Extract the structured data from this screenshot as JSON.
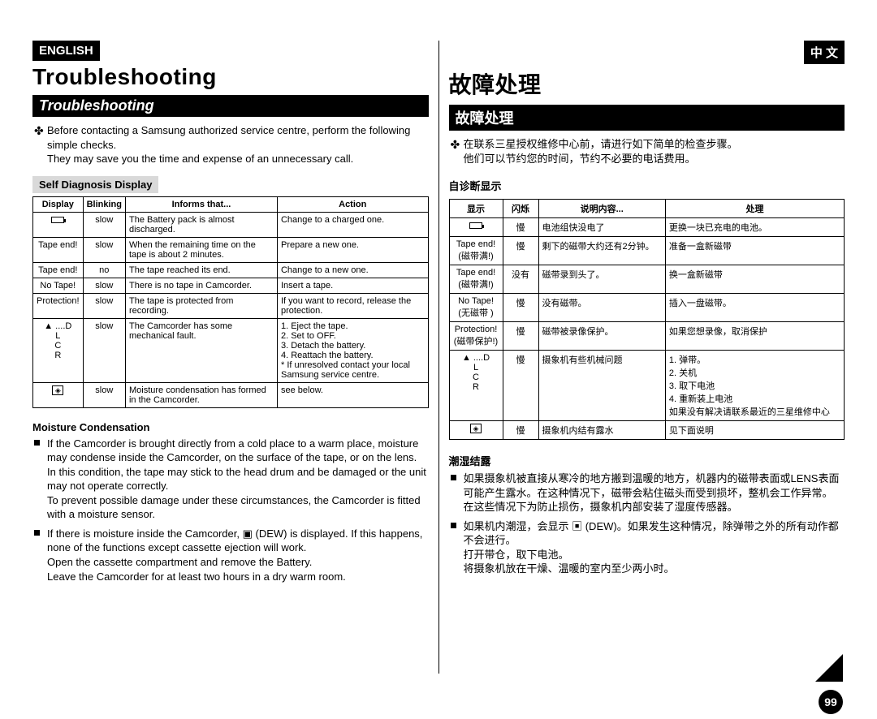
{
  "page_number": "99",
  "colors": {
    "bg": "#ffffff",
    "ink": "#000000",
    "section_bg": "#d9d9d9"
  },
  "left": {
    "lang_tab": "ENGLISH",
    "title": "Troubleshooting",
    "subtitle": "Troubleshooting",
    "intro_line1": "Before contacting a Samsung authorized service centre, perform the following simple checks.",
    "intro_line2": "They may save you the time and expense of an unnecessary call.",
    "section_label": "Self Diagnosis Display",
    "table": {
      "headers": [
        "Display",
        "Blinking",
        "Informs that...",
        "Action"
      ],
      "col_widths": [
        "60px",
        "50px",
        "auto",
        "auto"
      ],
      "rows": [
        {
          "display_icon": "batt",
          "display_text": "",
          "blinking": "slow",
          "informs": "The Battery pack is almost discharged.",
          "action": "Change to a charged one."
        },
        {
          "display_text": "Tape end!",
          "blinking": "slow",
          "informs": "When the remaining time on the tape is about 2 minutes.",
          "action": "Prepare a new one."
        },
        {
          "display_text": "Tape end!",
          "blinking": "no",
          "informs": "The tape reached its end.",
          "action": "Change to a new one."
        },
        {
          "display_text": "No Tape!",
          "blinking": "slow",
          "informs": "There is no tape in Camcorder.",
          "action": "Insert a tape."
        },
        {
          "display_text": "Protection!",
          "blinking": "slow",
          "informs": "The tape is protected from recording.",
          "action": "If you want to record, release the protection."
        },
        {
          "display_icon": "eject",
          "display_text": "▲ ....D\n     L\n     C\n     R",
          "blinking": "slow",
          "informs": "The Camcorder has some mechanical fault.",
          "action": "1. Eject the tape.\n2. Set to OFF.\n3. Detach the battery.\n4. Reattach the battery.\n* If unresolved contact your local Samsung service centre."
        },
        {
          "display_icon": "dew",
          "display_text": "",
          "blinking": "slow",
          "informs": "Moisture condensation has formed in the Camcorder.",
          "action": "see below."
        }
      ]
    },
    "moisture_heading": "Moisture Condensation",
    "moisture_items": [
      "If the Camcorder is brought directly from a cold place to a warm place, moisture may condense inside the Camcorder, on the surface of the tape, or on the lens. In this condition, the tape may stick to the head drum and be damaged or the unit may not operate correctly.\nTo prevent possible damage under these circumstances, the Camcorder is fitted with a moisture sensor.",
      "If there is moisture inside the Camcorder, ▣ (DEW) is displayed. If this happens, none of the functions except cassette ejection will work.\nOpen the cassette compartment and remove the Battery.\nLeave the Camcorder for at least two hours in a dry warm room."
    ]
  },
  "right": {
    "lang_tab": "中 文",
    "title": "故障处理",
    "subtitle": "故障处理",
    "intro_line1": "在联系三星授权维修中心前，请进行如下简单的检查步骤。",
    "intro_line2": "他们可以节约您的时间，节约不必要的电话费用。",
    "section_label": "自诊断显示",
    "table": {
      "headers": [
        "显示",
        "闪烁",
        "说明内容...",
        "处理"
      ],
      "col_widths": [
        "66px",
        "44px",
        "auto",
        "auto"
      ],
      "rows": [
        {
          "display_icon": "batt",
          "display_text": "",
          "blinking": "慢",
          "informs": "电池组快没电了",
          "action": "更换一块已充电的电池。"
        },
        {
          "display_text": "Tape end!\n(磁带满!)",
          "blinking": "慢",
          "informs": "剩下的磁带大约还有2分钟。",
          "action": "准备一盒新磁带"
        },
        {
          "display_text": "Tape end!\n(磁带满!)",
          "blinking": "没有",
          "informs": "磁带录到头了。",
          "action": "换一盒新磁带"
        },
        {
          "display_text": "No Tape!\n(无磁带 )",
          "blinking": "慢",
          "informs": "没有磁带。",
          "action": "插入一盘磁带。"
        },
        {
          "display_text": "Protection!\n(磁带保护!)",
          "blinking": "慢",
          "informs": "磁带被录像保护。",
          "action": "如果您想录像，取消保护"
        },
        {
          "display_icon": "eject",
          "display_text": "▲ ....D\n     L\n     C\n     R",
          "blinking": "慢",
          "informs": "摄象机有些机械问题",
          "action": "1. 弹带。\n2. 关机\n3. 取下电池\n4. 重新装上电池\n如果没有解决请联系最近的三星维修中心"
        },
        {
          "display_icon": "dew",
          "display_text": "",
          "blinking": "慢",
          "informs": "摄象机内结有露水",
          "action": "见下面说明"
        }
      ]
    },
    "moisture_heading": "潮湿结露",
    "moisture_items": [
      "如果摄象机被直接从寒冷的地方搬到温暖的地方，机器内的磁带表面或LENS表面可能产生露水。在这种情况下，磁带会粘住磁头而受到损坏，整机会工作异常。\n在这些情况下为防止损伤，摄象机内部安装了湿度传感器。",
      "如果机内潮湿，会显示 ▣ (DEW)。如果发生这种情况，除弹带之外的所有动作都不会进行。\n打开带仓，取下电池。\n将摄象机放在干燥、温暖的室内至少两小时。"
    ]
  }
}
